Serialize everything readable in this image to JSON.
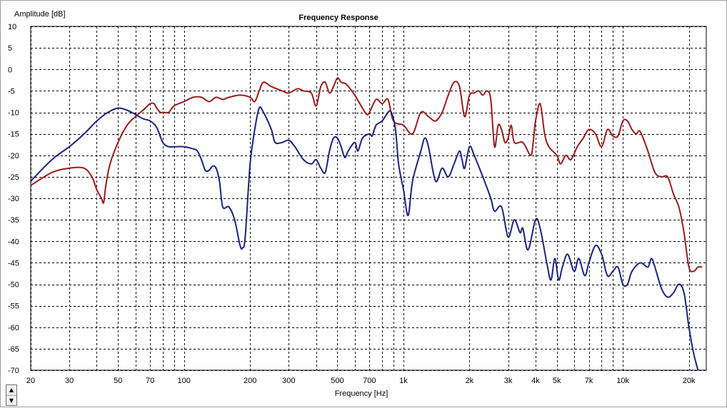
{
  "chart_data": {
    "type": "line",
    "title": "Frequency Response",
    "ylabel": "Amplitude [dB]",
    "xlabel": "Frequency [Hz]",
    "x_scale": "log",
    "xlim": [
      20,
      24000
    ],
    "ylim": [
      -70,
      10
    ],
    "grid": true,
    "y_ticks": [
      10,
      5,
      0,
      -5,
      -10,
      -15,
      -20,
      -25,
      -30,
      -35,
      -40,
      -45,
      -50,
      -55,
      -60,
      -65,
      -70
    ],
    "x_tick_labels": [
      {
        "value": 20,
        "label": "20"
      },
      {
        "value": 30,
        "label": "30"
      },
      {
        "value": 50,
        "label": "50"
      },
      {
        "value": 70,
        "label": "70"
      },
      {
        "value": 100,
        "label": "100"
      },
      {
        "value": 200,
        "label": "200"
      },
      {
        "value": 300,
        "label": "300"
      },
      {
        "value": 500,
        "label": "500"
      },
      {
        "value": 700,
        "label": "700"
      },
      {
        "value": 1000,
        "label": "1k"
      },
      {
        "value": 2000,
        "label": "2k"
      },
      {
        "value": 3000,
        "label": "3k"
      },
      {
        "value": 4000,
        "label": "4k"
      },
      {
        "value": 5000,
        "label": "5k"
      },
      {
        "value": 7000,
        "label": "7k"
      },
      {
        "value": 10000,
        "label": "10k"
      },
      {
        "value": 20000,
        "label": "20k"
      }
    ],
    "x_gridlines": [
      20,
      30,
      40,
      50,
      60,
      70,
      80,
      90,
      100,
      200,
      300,
      400,
      500,
      600,
      700,
      800,
      900,
      1000,
      2000,
      3000,
      4000,
      5000,
      6000,
      7000,
      8000,
      9000,
      10000,
      20000
    ],
    "series": [
      {
        "color": "#9b1c1c",
        "points": [
          [
            20,
            -27
          ],
          [
            25,
            -24
          ],
          [
            30,
            -23
          ],
          [
            35,
            -23
          ],
          [
            38,
            -25
          ],
          [
            40,
            -28
          ],
          [
            42,
            -30
          ],
          [
            43,
            -31
          ],
          [
            44,
            -27
          ],
          [
            46,
            -22
          ],
          [
            50,
            -17
          ],
          [
            55,
            -13
          ],
          [
            60,
            -11
          ],
          [
            65,
            -9.5
          ],
          [
            70,
            -8
          ],
          [
            73,
            -8
          ],
          [
            75,
            -9
          ],
          [
            78,
            -10
          ],
          [
            80,
            -10
          ],
          [
            85,
            -10
          ],
          [
            90,
            -8.5
          ],
          [
            100,
            -7.5
          ],
          [
            110,
            -6.5
          ],
          [
            120,
            -6.5
          ],
          [
            130,
            -7.5
          ],
          [
            140,
            -6.5
          ],
          [
            150,
            -7
          ],
          [
            160,
            -6.5
          ],
          [
            180,
            -6
          ],
          [
            200,
            -6.5
          ],
          [
            210,
            -7.5
          ],
          [
            220,
            -5
          ],
          [
            230,
            -3
          ],
          [
            250,
            -4
          ],
          [
            280,
            -5
          ],
          [
            300,
            -5.5
          ],
          [
            330,
            -4.5
          ],
          [
            350,
            -5
          ],
          [
            380,
            -5.5
          ],
          [
            400,
            -8.5
          ],
          [
            420,
            -4
          ],
          [
            440,
            -3
          ],
          [
            460,
            -5.5
          ],
          [
            480,
            -4
          ],
          [
            500,
            -2
          ],
          [
            520,
            -3
          ],
          [
            550,
            -3.5
          ],
          [
            600,
            -6
          ],
          [
            650,
            -9
          ],
          [
            680,
            -10.5
          ],
          [
            700,
            -10
          ],
          [
            750,
            -7
          ],
          [
            800,
            -8
          ],
          [
            850,
            -7
          ],
          [
            900,
            -12
          ],
          [
            1000,
            -13
          ],
          [
            1100,
            -15
          ],
          [
            1200,
            -10
          ],
          [
            1300,
            -11
          ],
          [
            1400,
            -12
          ],
          [
            1500,
            -10
          ],
          [
            1600,
            -6
          ],
          [
            1700,
            -3
          ],
          [
            1800,
            -4
          ],
          [
            1900,
            -11
          ],
          [
            2000,
            -6
          ],
          [
            2100,
            -5.5
          ],
          [
            2200,
            -5
          ],
          [
            2300,
            -6
          ],
          [
            2400,
            -5
          ],
          [
            2500,
            -7
          ],
          [
            2600,
            -18
          ],
          [
            2700,
            -13
          ],
          [
            2800,
            -14
          ],
          [
            2900,
            -17
          ],
          [
            3000,
            -16
          ],
          [
            3100,
            -13
          ],
          [
            3200,
            -17
          ],
          [
            3500,
            -17
          ],
          [
            3800,
            -20
          ],
          [
            3900,
            -17
          ],
          [
            4000,
            -12
          ],
          [
            4200,
            -8
          ],
          [
            4400,
            -15
          ],
          [
            4600,
            -18
          ],
          [
            5000,
            -20
          ],
          [
            5200,
            -22
          ],
          [
            5500,
            -20
          ],
          [
            5800,
            -21
          ],
          [
            6200,
            -18
          ],
          [
            6600,
            -16
          ],
          [
            7000,
            -14
          ],
          [
            7500,
            -15
          ],
          [
            8000,
            -18
          ],
          [
            8500,
            -14
          ],
          [
            9000,
            -15.5
          ],
          [
            9500,
            -15.5
          ],
          [
            10000,
            -12
          ],
          [
            10500,
            -12
          ],
          [
            11000,
            -14
          ],
          [
            11500,
            -15
          ],
          [
            12000,
            -14.5
          ],
          [
            13000,
            -19
          ],
          [
            14000,
            -24
          ],
          [
            15000,
            -25
          ],
          [
            16000,
            -25
          ],
          [
            17000,
            -29
          ],
          [
            18000,
            -32
          ],
          [
            19000,
            -38
          ],
          [
            20000,
            -46
          ],
          [
            21000,
            -47
          ],
          [
            22000,
            -46
          ],
          [
            23000,
            -46
          ]
        ]
      },
      {
        "color": "#1a237e",
        "points": [
          [
            20,
            -26
          ],
          [
            25,
            -21
          ],
          [
            30,
            -18
          ],
          [
            35,
            -15
          ],
          [
            40,
            -12
          ],
          [
            45,
            -10
          ],
          [
            50,
            -9
          ],
          [
            55,
            -9.5
          ],
          [
            60,
            -10.5
          ],
          [
            65,
            -11.5
          ],
          [
            70,
            -12
          ],
          [
            75,
            -13.5
          ],
          [
            80,
            -17
          ],
          [
            85,
            -18
          ],
          [
            90,
            -18
          ],
          [
            100,
            -18
          ],
          [
            110,
            -18.5
          ],
          [
            115,
            -19
          ],
          [
            120,
            -21
          ],
          [
            125,
            -23.5
          ],
          [
            130,
            -23.5
          ],
          [
            135,
            -22.5
          ],
          [
            140,
            -23
          ],
          [
            145,
            -26
          ],
          [
            150,
            -32
          ],
          [
            160,
            -32
          ],
          [
            170,
            -35
          ],
          [
            180,
            -41
          ],
          [
            185,
            -41.5
          ],
          [
            190,
            -39
          ],
          [
            200,
            -22
          ],
          [
            210,
            -14
          ],
          [
            220,
            -9
          ],
          [
            230,
            -10
          ],
          [
            250,
            -14
          ],
          [
            260,
            -17
          ],
          [
            280,
            -17
          ],
          [
            300,
            -16.5
          ],
          [
            320,
            -18
          ],
          [
            350,
            -21
          ],
          [
            380,
            -22
          ],
          [
            400,
            -21
          ],
          [
            420,
            -23
          ],
          [
            440,
            -24
          ],
          [
            460,
            -19
          ],
          [
            480,
            -16
          ],
          [
            500,
            -16
          ],
          [
            520,
            -18
          ],
          [
            540,
            -20.5
          ],
          [
            560,
            -19
          ],
          [
            600,
            -17
          ],
          [
            620,
            -19
          ],
          [
            650,
            -16
          ],
          [
            700,
            -15
          ],
          [
            720,
            -15.5
          ],
          [
            750,
            -13
          ],
          [
            800,
            -12
          ],
          [
            850,
            -10
          ],
          [
            880,
            -10
          ],
          [
            920,
            -14
          ],
          [
            950,
            -22
          ],
          [
            1000,
            -28
          ],
          [
            1050,
            -34
          ],
          [
            1100,
            -26
          ],
          [
            1200,
            -19
          ],
          [
            1250,
            -16
          ],
          [
            1300,
            -18
          ],
          [
            1400,
            -26
          ],
          [
            1500,
            -23
          ],
          [
            1600,
            -25
          ],
          [
            1700,
            -22
          ],
          [
            1800,
            -19
          ],
          [
            1850,
            -21
          ],
          [
            1900,
            -23
          ],
          [
            2000,
            -18
          ],
          [
            2100,
            -20
          ],
          [
            2300,
            -25
          ],
          [
            2500,
            -30
          ],
          [
            2600,
            -33
          ],
          [
            2800,
            -32
          ],
          [
            3000,
            -39
          ],
          [
            3200,
            -35
          ],
          [
            3400,
            -38
          ],
          [
            3500,
            -37
          ],
          [
            3700,
            -42
          ],
          [
            4000,
            -35
          ],
          [
            4200,
            -37
          ],
          [
            4500,
            -45
          ],
          [
            4700,
            -49
          ],
          [
            4900,
            -44
          ],
          [
            5100,
            -49
          ],
          [
            5300,
            -46
          ],
          [
            5600,
            -43
          ],
          [
            6000,
            -47
          ],
          [
            6300,
            -44
          ],
          [
            6700,
            -48
          ],
          [
            7000,
            -45
          ],
          [
            7500,
            -41
          ],
          [
            8000,
            -43
          ],
          [
            8500,
            -48
          ],
          [
            9000,
            -47
          ],
          [
            9500,
            -46
          ],
          [
            10000,
            -50
          ],
          [
            10500,
            -50
          ],
          [
            11000,
            -47
          ],
          [
            12000,
            -45
          ],
          [
            13000,
            -46
          ],
          [
            13500,
            -44
          ],
          [
            14000,
            -46
          ],
          [
            15000,
            -51
          ],
          [
            16000,
            -53
          ],
          [
            17000,
            -52
          ],
          [
            18000,
            -50
          ],
          [
            19000,
            -52
          ],
          [
            20000,
            -60
          ],
          [
            21000,
            -66
          ],
          [
            22000,
            -70
          ]
        ]
      }
    ]
  },
  "ui": {
    "scroll_up": "▲",
    "scroll_down": "▼"
  }
}
